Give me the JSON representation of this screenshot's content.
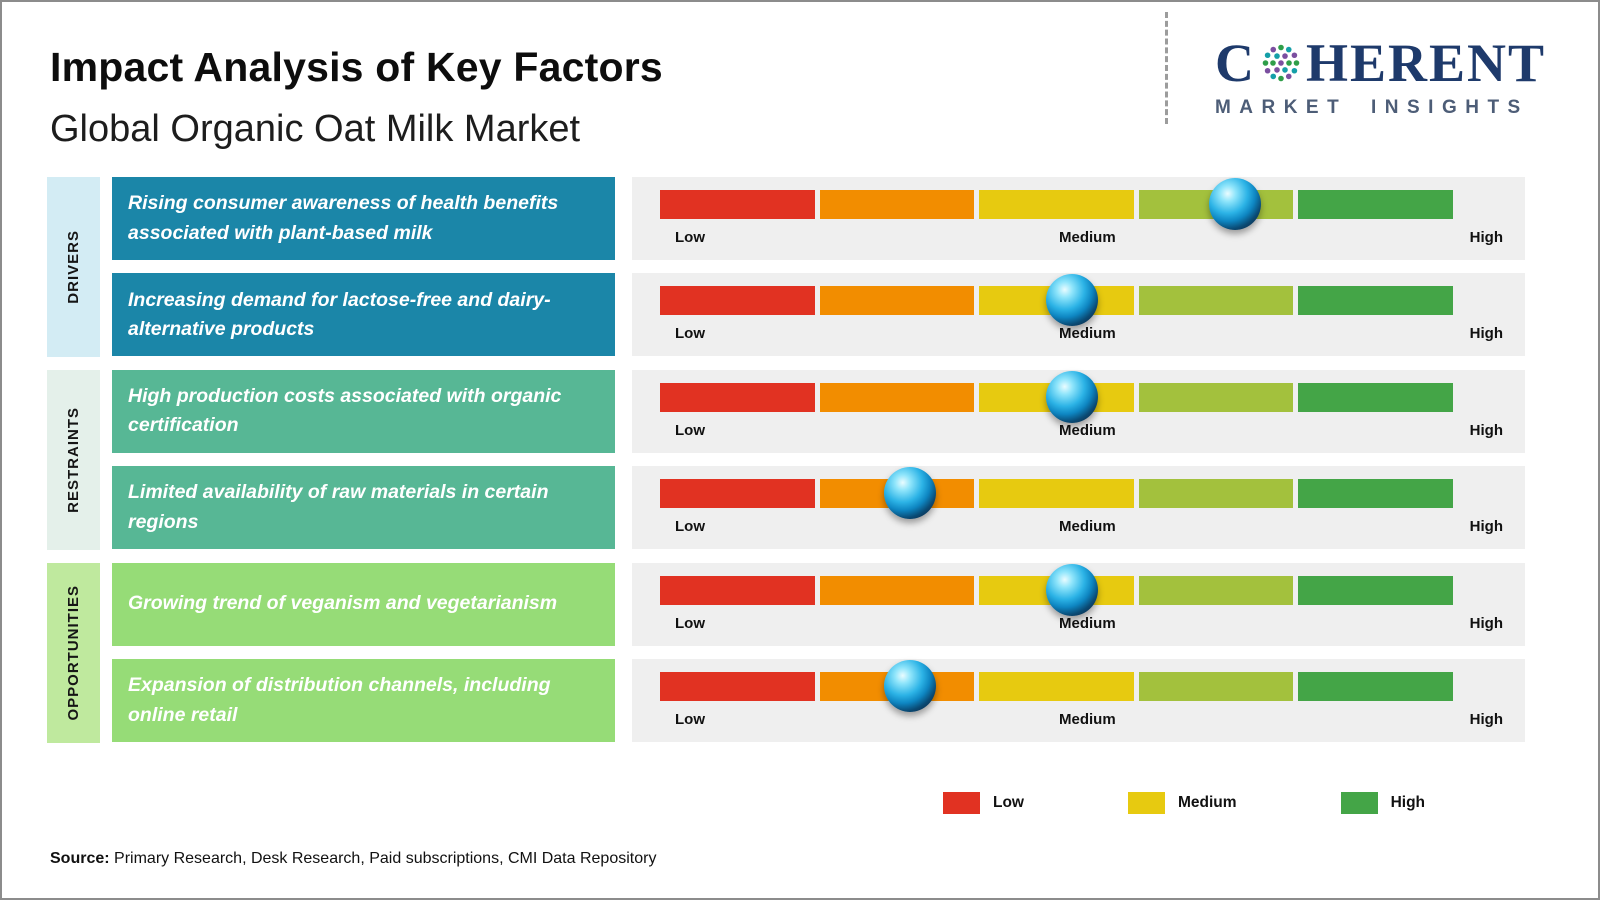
{
  "header": {
    "title": "Impact Analysis of Key Factors",
    "subtitle": "Global Organic Oat Milk Market"
  },
  "logo": {
    "brand_left": "C",
    "brand_right": "HERENT",
    "tagline": "MARKET INSIGHTS"
  },
  "chart_data": {
    "type": "impact-scale",
    "title": "Impact Analysis of Key Factors",
    "subtitle": "Global Organic Oat Milk Market",
    "scale": {
      "min_label": "Low",
      "mid_label": "Medium",
      "max_label": "High",
      "range_pct": [
        0,
        100
      ]
    },
    "segment_colors": [
      "#e13222",
      "#f28d00",
      "#e7ca10",
      "#a3c13d",
      "#44a547"
    ],
    "groups": [
      {
        "name": "DRIVERS",
        "box_color": "#1b86a8",
        "strip_color": "#d3ecf4",
        "rows": [
          {
            "label": "Rising consumer awareness of health benefits associated with plant-based milk",
            "impact_pct": 72.5,
            "impact_level": "Medium-High"
          },
          {
            "label": "Increasing demand for lactose-free and dairy-alternative products",
            "impact_pct": 52,
            "impact_level": "Medium"
          }
        ]
      },
      {
        "name": "RESTRAINTS",
        "box_color": "#57b795",
        "strip_color": "#e4f0ea",
        "rows": [
          {
            "label": "High production costs associated with organic certification",
            "impact_pct": 52,
            "impact_level": "Medium"
          },
          {
            "label": "Limited availability of raw materials in certain regions",
            "impact_pct": 31.5,
            "impact_level": "Low-Medium"
          }
        ]
      },
      {
        "name": "OPPORTUNITIES",
        "box_color": "#96dc77",
        "strip_color": "#bfe99e",
        "rows": [
          {
            "label": "Growing trend of veganism and vegetarianism",
            "impact_pct": 52,
            "impact_level": "Medium"
          },
          {
            "label": "Expansion of distribution channels, including online retail",
            "impact_pct": 31.5,
            "impact_level": "Low-Medium"
          }
        ]
      }
    ]
  },
  "legend": [
    {
      "label": "Low",
      "color": "#e13222"
    },
    {
      "label": "Medium",
      "color": "#e7ca10"
    },
    {
      "label": "High",
      "color": "#44a547"
    }
  ],
  "source": {
    "prefix": "Source:",
    "text": "Primary Research, Desk Research, Paid subscriptions, CMI Data Repository"
  }
}
